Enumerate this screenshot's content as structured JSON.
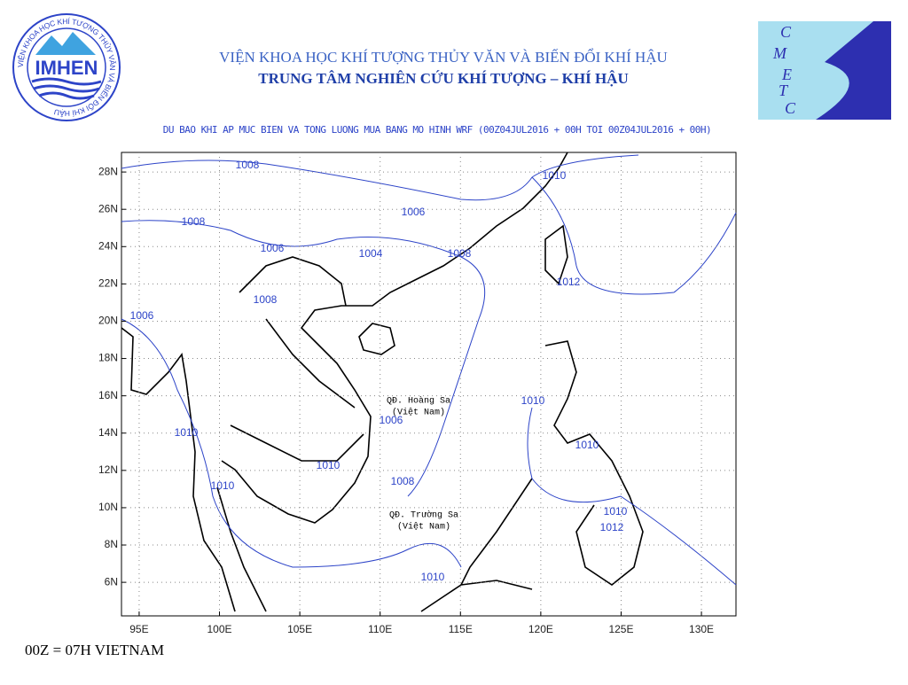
{
  "header": {
    "institute": "VIỆN KHOA HỌC KHÍ TƯỢNG THỦY VĂN VÀ BIẾN ĐỔI KHÍ HẬU",
    "center": "TRUNG TÂM NGHIÊN CỨU KHÍ TƯỢNG – KHÍ HẬU",
    "subtitle": "DU BAO KHI AP MUC BIEN VA TONG LUONG MUA BANG MO HINH WRF (00Z04JUL2016 + 00H TOI 00Z04JUL2016 + 00H)"
  },
  "logos": {
    "imhen": "IMHEN",
    "imhen_ring": "VIỆN KHOA HỌC KHÍ TƯỢNG THỦY VĂN VÀ BIẾN ĐỔI KHÍ HẬU",
    "cmetc_letters": [
      "C",
      "M",
      "E",
      "T",
      "C"
    ]
  },
  "map": {
    "xlim": [
      93.9,
      132.15
    ],
    "ylim": [
      4.2,
      29.05
    ],
    "grid": true,
    "xticks": [
      {
        "value": 95,
        "label": "95E"
      },
      {
        "value": 100,
        "label": "100E"
      },
      {
        "value": 105,
        "label": "105E"
      },
      {
        "value": 110,
        "label": "110E"
      },
      {
        "value": 115,
        "label": "115E"
      },
      {
        "value": 120,
        "label": "120E"
      },
      {
        "value": 125,
        "label": "125E"
      },
      {
        "value": 130,
        "label": "130E"
      }
    ],
    "yticks": [
      {
        "value": 6,
        "label": "6N"
      },
      {
        "value": 8,
        "label": "8N"
      },
      {
        "value": 10,
        "label": "10N"
      },
      {
        "value": 12,
        "label": "12N"
      },
      {
        "value": 14,
        "label": "14N"
      },
      {
        "value": 16,
        "label": "16N"
      },
      {
        "value": 18,
        "label": "18N"
      },
      {
        "value": 20,
        "label": "20N"
      },
      {
        "value": 22,
        "label": "22N"
      },
      {
        "value": 24,
        "label": "24N"
      },
      {
        "value": 26,
        "label": "26N"
      },
      {
        "value": 28,
        "label": "28N"
      }
    ],
    "isobar_labels": [
      1008,
      1006,
      1010,
      1008,
      1006,
      1004,
      1008,
      1012,
      1008,
      1006,
      1010,
      1006,
      1010,
      1010,
      1010,
      1010,
      1008,
      1010,
      1012,
      1010
    ],
    "islands": [
      {
        "name": "QĐ. Hoàng Sa",
        "note": "(Việt Nam)"
      },
      {
        "name": "QĐ. Trường Sa",
        "note": "(Việt Nam)"
      }
    ]
  },
  "footer": "00Z = 07H VIETNAM"
}
